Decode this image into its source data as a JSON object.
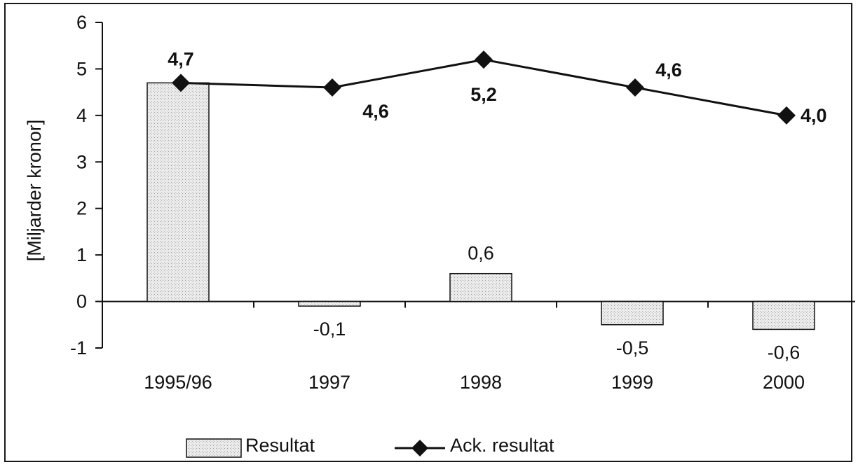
{
  "chart_data": {
    "type": "bar",
    "categories": [
      "1995/96",
      "1997",
      "1998",
      "1999",
      "2000"
    ],
    "ylabel": "[Miljarder kronor]",
    "ylim": [
      -1,
      6
    ],
    "yticks": [
      "6",
      "5",
      "4",
      "3",
      "2",
      "1",
      "0",
      "-1"
    ],
    "series": [
      {
        "name": "Resultat",
        "type": "bar",
        "values": [
          4.7,
          -0.1,
          0.6,
          -0.5,
          -0.6
        ],
        "labels": [
          "",
          "-0,1",
          "0,6",
          "-0,5",
          "-0,6"
        ]
      },
      {
        "name": "Ack. resultat",
        "type": "line",
        "values": [
          4.7,
          4.6,
          5.2,
          4.6,
          4.0
        ],
        "labels": [
          "4,7",
          "4,6",
          "5,2",
          "4,6",
          "4,0"
        ]
      }
    ],
    "legend_position": "bottom",
    "grid": false,
    "colors": {
      "bar_fill": "#e3e3e3",
      "line": "#111111"
    }
  }
}
